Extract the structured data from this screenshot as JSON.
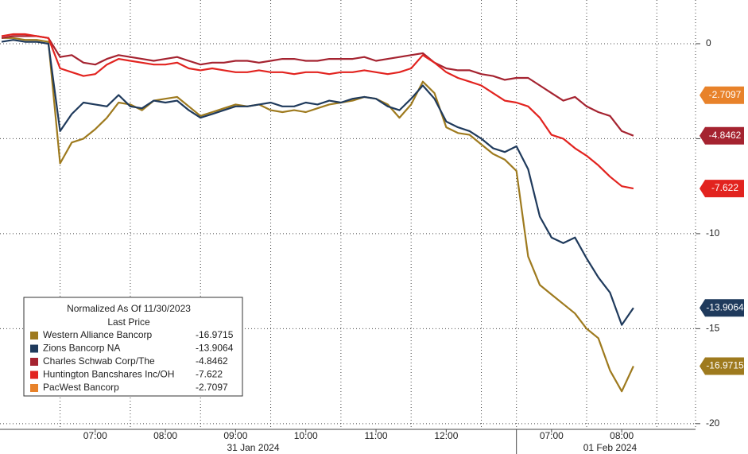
{
  "chart_data": {
    "type": "line",
    "legend_title": "Normalized As Of 11/30/2023",
    "legend_subtitle": "Last Price",
    "legend_position": "lower left",
    "grid": true,
    "ylim": [
      -20.3,
      2.3
    ],
    "yticks": [
      0,
      -5,
      -10,
      -15,
      -20
    ],
    "categories": [
      null,
      null,
      null,
      null,
      null,
      null,
      null,
      null,
      "07:00",
      null,
      null,
      null,
      null,
      null,
      "08:00",
      null,
      null,
      null,
      null,
      null,
      "09:00",
      null,
      null,
      null,
      null,
      null,
      "10:00",
      null,
      null,
      null,
      null,
      null,
      "11:00",
      null,
      null,
      null,
      null,
      null,
      "12:00",
      null,
      null,
      null,
      null,
      null,
      null,
      null,
      null,
      "07:00",
      null,
      null,
      null,
      null,
      null,
      "08:00",
      null
    ],
    "groups": [
      {
        "label": "31 Jan 2024",
        "start": 0,
        "end": 43
      },
      {
        "label": "01 Feb 2024",
        "start": 44,
        "end": 54
      }
    ],
    "series": [
      {
        "name": "Western Alliance Bancorp",
        "color": "#9e7a1e",
        "values": [
          0.3,
          0.3,
          0.2,
          0.2,
          0.1,
          -6.3,
          -5.2,
          -5.0,
          -4.5,
          -3.9,
          -3.1,
          -3.2,
          -3.5,
          -3.0,
          -2.9,
          -2.8,
          -3.3,
          -3.8,
          -3.6,
          -3.4,
          -3.2,
          -3.3,
          -3.2,
          -3.5,
          -3.6,
          -3.5,
          -3.6,
          -3.4,
          -3.2,
          -3.1,
          -3.0,
          -2.8,
          -2.9,
          -3.2,
          -3.9,
          -3.2,
          -2.0,
          -2.6,
          -4.4,
          -4.7,
          -4.8,
          -5.3,
          -5.8,
          -6.1,
          -6.7,
          -11.2,
          -12.7,
          -13.2,
          -13.7,
          -14.2,
          -15.0,
          -15.5,
          -17.2,
          -18.3,
          -16.9715
        ]
      },
      {
        "name": "Zions Bancorp NA",
        "color": "#1f3a5c",
        "values": [
          0.1,
          0.2,
          0.1,
          0.1,
          0.0,
          -4.6,
          -3.7,
          -3.1,
          -3.2,
          -3.3,
          -2.7,
          -3.3,
          -3.4,
          -3.0,
          -3.1,
          -3.0,
          -3.5,
          -3.9,
          -3.7,
          -3.5,
          -3.3,
          -3.3,
          -3.2,
          -3.1,
          -3.3,
          -3.3,
          -3.1,
          -3.2,
          -3.0,
          -3.1,
          -2.9,
          -2.8,
          -2.9,
          -3.3,
          -3.5,
          -2.9,
          -2.2,
          -2.9,
          -4.1,
          -4.4,
          -4.6,
          -5.0,
          -5.5,
          -5.7,
          -5.4,
          -6.6,
          -9.1,
          -10.2,
          -10.5,
          -10.2,
          -11.3,
          -12.3,
          -13.1,
          -14.8,
          -13.9064
        ]
      },
      {
        "name": "Charles Schwab Corp/The",
        "color": "#a52330",
        "values": [
          0.3,
          0.4,
          0.4,
          0.4,
          0.3,
          -0.7,
          -0.6,
          -1.0,
          -1.1,
          -0.8,
          -0.6,
          -0.7,
          -0.8,
          -0.9,
          -0.8,
          -0.7,
          -0.9,
          -1.1,
          -1.0,
          -1.0,
          -0.9,
          -0.9,
          -1.0,
          -0.9,
          -0.8,
          -0.8,
          -0.9,
          -0.9,
          -0.8,
          -0.8,
          -0.8,
          -0.7,
          -0.9,
          -0.8,
          -0.7,
          -0.6,
          -0.5,
          -1.0,
          -1.3,
          -1.4,
          -1.4,
          -1.6,
          -1.7,
          -1.9,
          -1.8,
          -1.8,
          -2.2,
          -2.6,
          -3.0,
          -2.8,
          -3.3,
          -3.6,
          -3.8,
          -4.6,
          -4.8462
        ]
      },
      {
        "name": "Huntington Bancshares Inc/OH",
        "color": "#e2231f",
        "values": [
          0.4,
          0.5,
          0.5,
          0.4,
          0.3,
          -1.3,
          -1.5,
          -1.7,
          -1.6,
          -1.1,
          -0.8,
          -0.9,
          -1.0,
          -1.1,
          -1.1,
          -1.0,
          -1.3,
          -1.4,
          -1.3,
          -1.4,
          -1.5,
          -1.5,
          -1.4,
          -1.5,
          -1.5,
          -1.6,
          -1.5,
          -1.5,
          -1.6,
          -1.5,
          -1.5,
          -1.4,
          -1.5,
          -1.6,
          -1.5,
          -1.3,
          -0.6,
          -1.0,
          -1.5,
          -1.8,
          -2.0,
          -2.2,
          -2.6,
          -3.0,
          -3.1,
          -3.3,
          -3.9,
          -4.8,
          -5.0,
          -5.5,
          -5.9,
          -6.4,
          -7.0,
          -7.5,
          -7.622
        ]
      },
      {
        "name": "PacWest Bancorp",
        "color": "#e8822a",
        "values": [
          null,
          null,
          null,
          null,
          null,
          null,
          null,
          null,
          null,
          null,
          null,
          null,
          null,
          null,
          null,
          null,
          null,
          null,
          null,
          null,
          null,
          null,
          null,
          null,
          null,
          null,
          null,
          null,
          null,
          null,
          null,
          null,
          null,
          null,
          null,
          null,
          null,
          null,
          null,
          null,
          null,
          null,
          null,
          null,
          null,
          null,
          null,
          null,
          null,
          null,
          null,
          null,
          null,
          null,
          -2.7097
        ]
      }
    ]
  }
}
